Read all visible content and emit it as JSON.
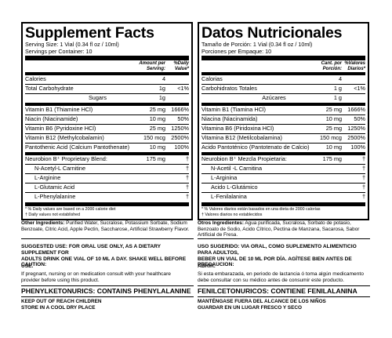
{
  "left": {
    "title": "Supplement Facts",
    "serving_size": "Serving Size: 1 Vial (0.34 fl oz / 10ml)",
    "servings": "Servings per Container: 10",
    "col_amount": "Amount per Serving:",
    "col_dv": "%Daily Value*",
    "rows_top": [
      {
        "name": "Calories",
        "amount": "4",
        "dv": ""
      },
      {
        "name": "Total Carbohydrate",
        "amount": "1g",
        "dv": "<1%"
      },
      {
        "name": "Sugars",
        "amount": "1g",
        "dv": ""
      }
    ],
    "rows_vit": [
      {
        "name": "Vitamin B1 (Thiamine HCl)",
        "amount": "25 mg",
        "dv": "1666%"
      },
      {
        "name": "Niacin (Niacinamide)",
        "amount": "10 mg",
        "dv": "50%"
      },
      {
        "name": "Vitamin B6 (Pyridoxine HCl)",
        "amount": "25 mg",
        "dv": "1250%"
      },
      {
        "name": "Vitamin B12 (Methylcobalamin)",
        "amount": "150 mcg",
        "dv": "2500%"
      },
      {
        "name": "Pantothenic Acid (Calcium Pantothenate)",
        "amount": "10 mg",
        "dv": "100%"
      }
    ],
    "blend": {
      "name": "Neurobion B⁺ Proprietary Blend:",
      "amount": "175 mg",
      "dv": "†"
    },
    "blend_items": [
      {
        "name": "N-Acetyl-L Carnitine",
        "dv": "†"
      },
      {
        "name": "L-Arginine",
        "dv": "†"
      },
      {
        "name": "L-Glutamic Acid",
        "dv": "†"
      },
      {
        "name": "L-Phenylalanine",
        "dv": "†"
      }
    ],
    "foot1": "* % Daily values are based on a 2000 calorie diet",
    "foot2": "† Daily values not established",
    "ing_label": "Other Ingredients:",
    "ing_text": " Purified Water, Sucralose, Potassium Sorbate, Sodium Benzoate, Citric Acid, Apple Pectin, Saccharose, Artificial Strawberry Flavor.",
    "use_1": "SUGGESTED USE: FOR ORAL USE ONLY, AS A DIETARY SUPPLEMENT FOR",
    "use_2": "ADULTS DRINK ONE VIAL OF 10 ML A DAY.  SHAKE WELL BEFORE USE.",
    "caution_h": "CAUTION:",
    "caution_1": "If pregnant, nursing or on medication consult with your healthcare",
    "caution_2": "provider before using this product.",
    "pku": "PHENYLKETONURICS: CONTAINS PHENYLALANINE",
    "keep_1": "KEEP OUT OF REACH CHILDREN",
    "keep_2": "STORE IN A COOL DRY PLACE"
  },
  "right": {
    "title": "Datos Nutricionales",
    "serving_size": "Tamaño de Porción: 1 Vial (0.34 fl oz / 10ml)",
    "servings": "Porciones per Empaque: 10",
    "col_amount": "Cant. por Porción:",
    "col_dv": "%Valores Diarios*",
    "rows_top": [
      {
        "name": "Calorias",
        "amount": "4",
        "dv": ""
      },
      {
        "name": "Carbohidratos Totales",
        "amount": "1 g",
        "dv": "<1%"
      },
      {
        "name": "Azúcares",
        "amount": "1 g",
        "dv": ""
      }
    ],
    "rows_vit": [
      {
        "name": "Vitamin B1 (Tiamina HCl)",
        "amount": "25 mg",
        "dv": "1666%"
      },
      {
        "name": "Niacina (Niacinamida)",
        "amount": "10 mg",
        "dv": "50%"
      },
      {
        "name": "Vitamina B6 (Piridoxina HCl)",
        "amount": "25 mg",
        "dv": "1250%"
      },
      {
        "name": "Vitamina B12 (Metilcobalamina)",
        "amount": "150 mcg",
        "dv": "2500%"
      },
      {
        "name": "Acido Pantoténico (Pantotenato de Calcio)",
        "amount": "10 mg",
        "dv": "100%"
      }
    ],
    "blend": {
      "name": "Neurobion B⁺ Mezcla Propietaria:",
      "amount": "175 mg",
      "dv": "†"
    },
    "blend_items": [
      {
        "name": "N-Acetil -L Carnitina",
        "dv": "†"
      },
      {
        "name": "L-Arginina",
        "dv": "†"
      },
      {
        "name": "Acido L-Glutámico",
        "dv": "†"
      },
      {
        "name": "L-Fenilalanina",
        "dv": "†"
      }
    ],
    "foot1": "* % Valores diarios están basados en una dieta de 2000 calorías",
    "foot2": "† Valores diarios no establecidos",
    "ing_label": "Otros Ingredientes:",
    "ing_text": " Agua purificada, Sucralosa, Sorbato de potasio, Benzoato de Sodio, Acido Cítrico, Pectina de Manzana, Sacarosa, Sabor Artificial de Fresa.",
    "use_1": "USO SUGERIDO: VIA ORAL, COMO SUPLEMENTO ALIMENTICIO PARA ADULTOS,",
    "use_2": "BEBER UN VIAL DE 10 ML POR DÍA.  AGÍTESE BIEN ANTES DE ABRIR.",
    "caution_h": "PRECAUCION:",
    "caution_1": "Si esta embarazada, en periodo de lactancia ó toma algún medicamento",
    "caution_2": "debe consultar con su médico antes de consumir este producto.",
    "pku": "FENILCETONURICOS: CONTIENE FENILALANINA",
    "keep_1": "MANTÉNGASE FUERA DEL ALCANCE DE LOS NIÑOS",
    "keep_2": "GUARDAR EN UN LUGAR FRESCO Y SECO"
  }
}
